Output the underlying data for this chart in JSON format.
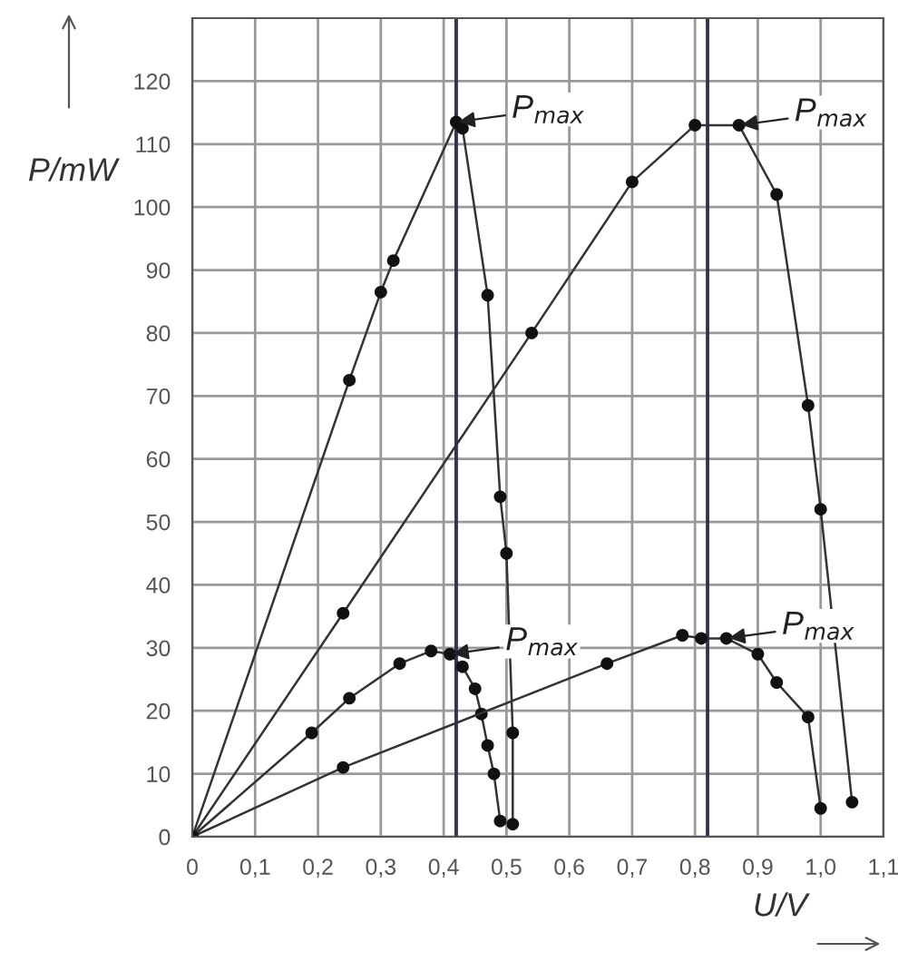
{
  "chart_data": {
    "type": "line",
    "xlabel": "U/V",
    "ylabel": "P/mW",
    "xlim": [
      0,
      1.1
    ],
    "ylim": [
      0,
      130
    ],
    "xticks": [
      0,
      {
        "value": 0.1,
        "label": "0,1"
      },
      {
        "value": 0.2,
        "label": "0,2"
      },
      {
        "value": 0.3,
        "label": "0,3"
      },
      {
        "value": 0.4,
        "label": "0,4"
      },
      {
        "value": 0.5,
        "label": "0,5"
      },
      {
        "value": 0.6,
        "label": "0,6"
      },
      {
        "value": 0.7,
        "label": "0,7"
      },
      {
        "value": 0.8,
        "label": "0,8"
      },
      {
        "value": 0.9,
        "label": "0,9"
      },
      {
        "value": 1.0,
        "label": "1,0"
      },
      {
        "value": 1.1,
        "label": "1,1"
      }
    ],
    "yticks": [
      0,
      10,
      20,
      30,
      40,
      50,
      60,
      70,
      80,
      90,
      100,
      110,
      120
    ],
    "grid": true,
    "marker": "circle",
    "line_style": "solid",
    "series": [
      {
        "color": "#333333",
        "x": [
          0,
          0.25,
          0.3,
          0.32,
          0.42,
          0.43,
          0.47,
          0.49,
          0.5,
          0.51,
          0.51
        ],
        "values": [
          0,
          72.5,
          86.5,
          91.5,
          113.5,
          112.5,
          86,
          54,
          45,
          16.5,
          2
        ]
      },
      {
        "color": "#333333",
        "x": [
          0,
          0.24,
          0.54,
          0.7,
          0.8,
          0.87,
          0.93,
          0.98,
          1.0,
          1.05
        ],
        "values": [
          0,
          35.5,
          80,
          104,
          113,
          113,
          102,
          68.5,
          52,
          5.5
        ]
      },
      {
        "color": "#333333",
        "x": [
          0,
          0.19,
          0.25,
          0.33,
          0.38,
          0.41,
          0.43,
          0.45,
          0.46,
          0.47,
          0.48,
          0.49
        ],
        "values": [
          0,
          16.5,
          22,
          27.5,
          29.5,
          29,
          27,
          23.5,
          19.5,
          14.5,
          10,
          2.5
        ]
      },
      {
        "color": "#333333",
        "x": [
          0,
          0.24,
          0.66,
          0.78,
          0.81,
          0.85,
          0.9,
          0.93,
          0.98,
          1.0
        ],
        "values": [
          0,
          11,
          27.5,
          32,
          31.5,
          31.5,
          29,
          24.5,
          19,
          4.5
        ]
      }
    ],
    "ref_lines": [
      {
        "axis": "x",
        "value": 0.42,
        "color": "#333355"
      },
      {
        "axis": "x",
        "value": 0.82,
        "color": "#333355"
      }
    ],
    "annotations": [
      {
        "text": "P$_{max}$",
        "x": 0.42,
        "y": 113.5
      },
      {
        "text": "P$_{max}$",
        "x": 0.87,
        "y": 113
      },
      {
        "text": "P$_{max}$",
        "x": 0.41,
        "y": 29
      },
      {
        "text": "P$_{max}$",
        "x": 0.85,
        "y": 31.5
      }
    ]
  }
}
